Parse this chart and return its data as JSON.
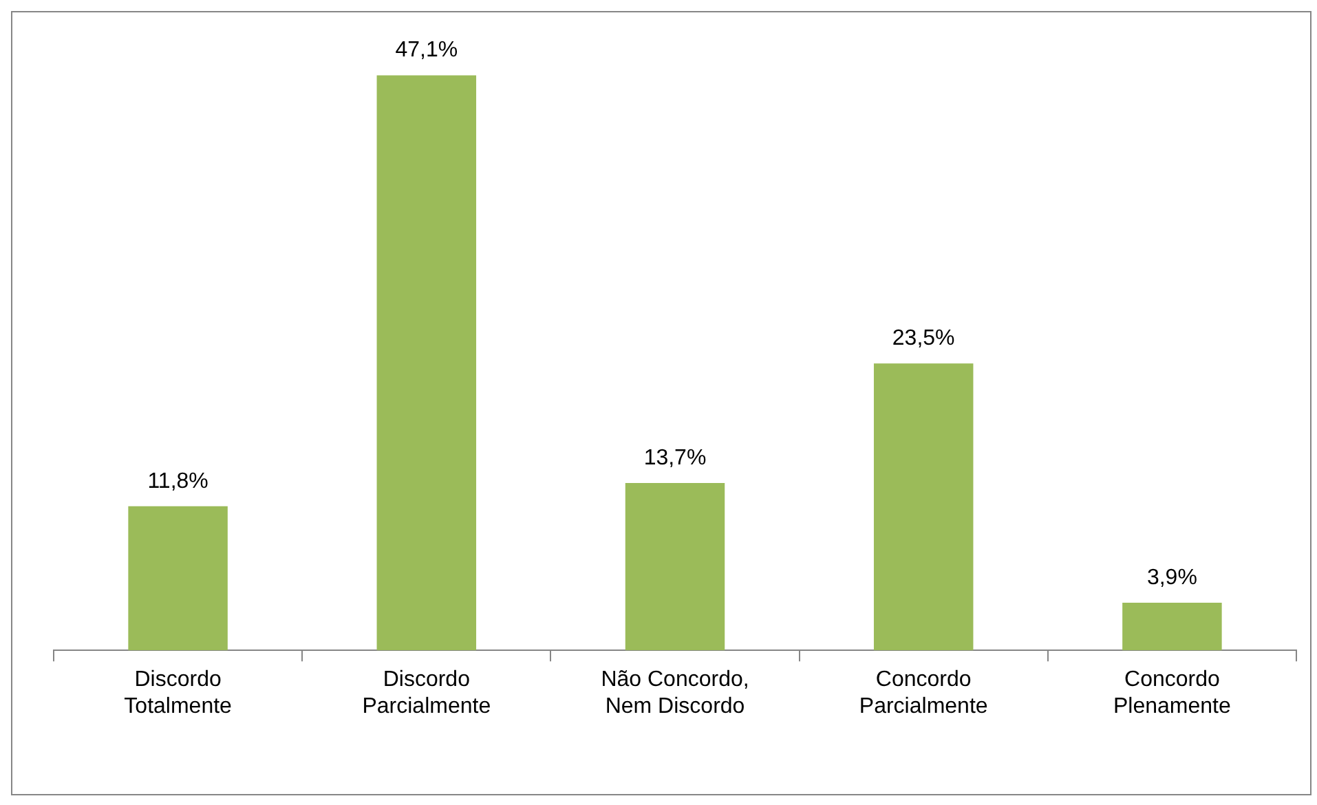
{
  "chart_data": {
    "type": "bar",
    "categories": [
      "Discordo Totalmente",
      "Discordo Parcialmente",
      "Não Concordo, Nem Discordo",
      "Concordo Parcialmente",
      "Concordo Plenamente"
    ],
    "values": [
      11.8,
      47.1,
      13.7,
      23.5,
      3.9
    ],
    "value_labels": [
      "11,8%",
      "47,1%",
      "13,7%",
      "23,5%",
      "3,9%"
    ],
    "color": "#9bbb59",
    "grid": false,
    "legend": false
  }
}
